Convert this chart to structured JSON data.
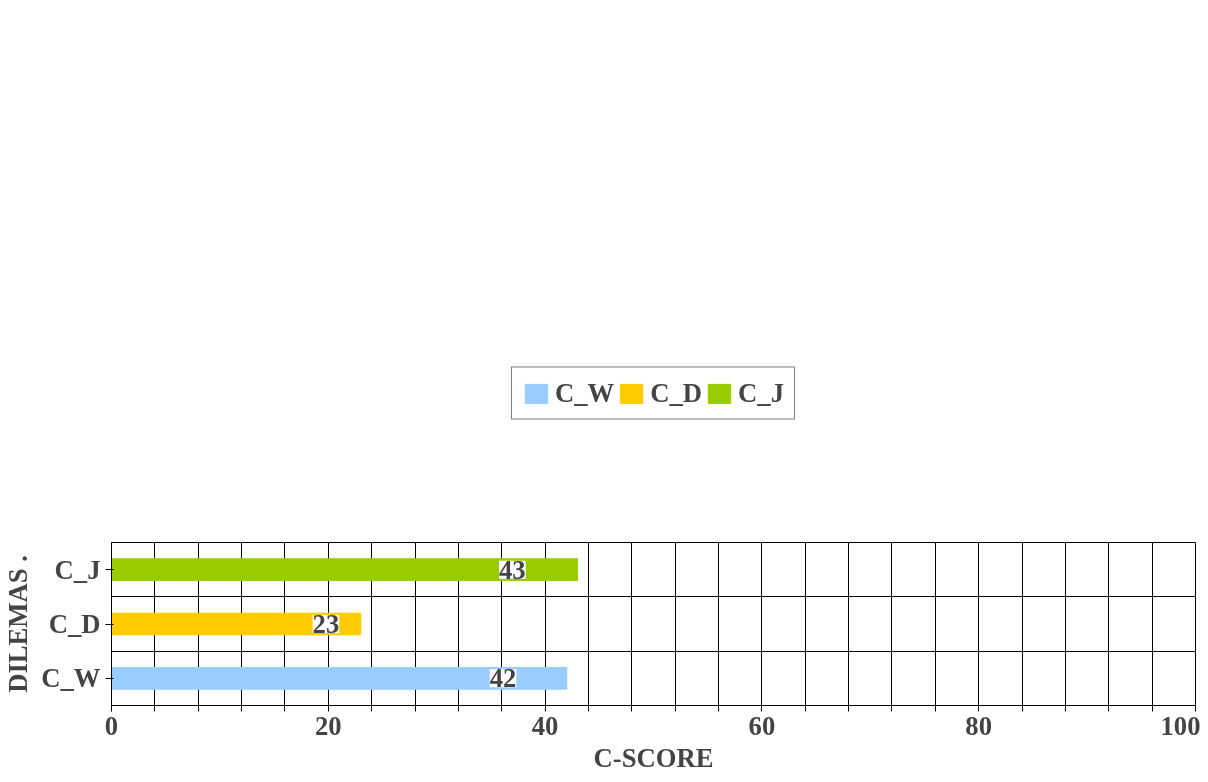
{
  "chart_data": {
    "type": "bar",
    "orientation": "horizontal",
    "xlabel": "C-SCORE",
    "ylabel": "DILEMAS .",
    "categories": [
      "C_J",
      "C_D",
      "C_W"
    ],
    "series": [
      {
        "name": "C_W",
        "color": "#99ccff",
        "values": [
          null,
          null,
          42
        ]
      },
      {
        "name": "C_D",
        "color": "#ffcc00",
        "values": [
          null,
          23,
          null
        ]
      },
      {
        "name": "C_J",
        "color": "#99cc00",
        "values": [
          43,
          null,
          null
        ]
      }
    ],
    "data_labels": true,
    "xlim": [
      0,
      100
    ],
    "xticks": [
      0,
      {
        "value": 4,
        "label": null
      },
      {
        "value": 8,
        "label": null
      },
      {
        "value": 12,
        "label": null
      },
      {
        "value": 16,
        "label": null
      },
      20,
      {
        "value": 24,
        "label": null
      },
      {
        "value": 28,
        "label": null
      },
      {
        "value": 32,
        "label": null
      },
      {
        "value": 36,
        "label": null
      },
      40,
      {
        "value": 44,
        "label": null
      },
      {
        "value": 48,
        "label": null
      },
      {
        "value": 52,
        "label": null
      },
      {
        "value": 56,
        "label": null
      },
      60,
      {
        "value": 64,
        "label": null
      },
      {
        "value": 68,
        "label": null
      },
      {
        "value": 72,
        "label": null
      },
      {
        "value": 76,
        "label": null
      },
      80,
      {
        "value": 84,
        "label": null
      },
      {
        "value": 88,
        "label": null
      },
      {
        "value": 92,
        "label": null
      },
      {
        "value": 96,
        "label": null
      },
      100
    ],
    "grid": true,
    "legend": "top"
  }
}
